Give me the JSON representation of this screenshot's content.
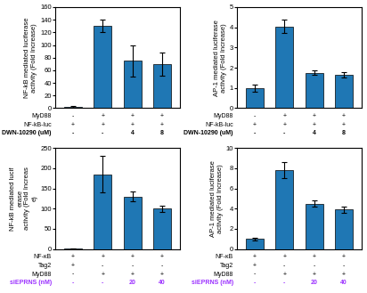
{
  "chart_data": [
    {
      "type": "bar",
      "ylabel": "NF-kB mediated luciferase\nactivity (Fold Increase)",
      "categories": [
        null,
        null,
        null,
        null
      ],
      "values": [
        2,
        130,
        75,
        70
      ],
      "errors": [
        1,
        10,
        25,
        18
      ],
      "ylim": [
        0,
        160
      ],
      "yticks": [
        0,
        20,
        40,
        60,
        80,
        100,
        120,
        140,
        160
      ],
      "tick_labels": "y",
      "table": [
        {
          "label": "MyD88",
          "cells": [
            "-",
            "+",
            "+",
            "+"
          ]
        },
        {
          "label": "NF-kB-luc",
          "cells": [
            "+",
            "+",
            "+",
            "+"
          ]
        },
        {
          "label": "DWN-10290 (uM)",
          "cells": [
            "-",
            "-",
            "4",
            "8"
          ]
        }
      ]
    },
    {
      "type": "bar",
      "ylabel": "AP-1 mediated luciferase\nactivity (Fold Increase)",
      "categories": [
        null,
        null,
        null,
        null
      ],
      "values": [
        1.0,
        4.05,
        1.75,
        1.65
      ],
      "errors": [
        0.18,
        0.35,
        0.1,
        0.12
      ],
      "ylim": [
        0,
        5
      ],
      "yticks": [
        0,
        1,
        2,
        3,
        4,
        5
      ],
      "tick_labels": "y",
      "table": [
        {
          "label": "MyD88",
          "cells": [
            "-",
            "+",
            "+",
            "+"
          ]
        },
        {
          "label": "NF-kB-luc",
          "cells": [
            "+",
            "+",
            "+",
            "+"
          ]
        },
        {
          "label": "DWN-10290 (uM)",
          "cells": [
            "-",
            "-",
            "4",
            "8"
          ]
        }
      ]
    },
    {
      "type": "bar",
      "ylabel": "NF-kB mediated lucif\nerase\nactivity (Fold Increas\ne)",
      "categories": [
        null,
        null,
        null,
        null
      ],
      "values": [
        1,
        185,
        130,
        100
      ],
      "errors": [
        0.5,
        45,
        12,
        8
      ],
      "ylim": [
        0,
        250
      ],
      "yticks": [
        0,
        50,
        100,
        150,
        200,
        250
      ],
      "tick_labels": "y",
      "table": [
        {
          "label": "NF-κB",
          "cells": [
            "+",
            "+",
            "+",
            "+"
          ]
        },
        {
          "label": "Tag2",
          "cells": [
            "+",
            "-",
            "-",
            "-"
          ]
        },
        {
          "label": "MyD88",
          "cells": [
            "-",
            "+",
            "+",
            "+"
          ]
        },
        {
          "label": "siEPRNS (nM)",
          "cells": [
            "-",
            "-",
            "20",
            "40"
          ],
          "color": "#9b30ff"
        }
      ]
    },
    {
      "type": "bar",
      "ylabel": "AP-1 mediated luciferase\nactivity (Fold Increase)",
      "categories": [
        null,
        null,
        null,
        null
      ],
      "values": [
        1.0,
        7.8,
        4.5,
        3.9
      ],
      "errors": [
        0.15,
        0.8,
        0.35,
        0.3
      ],
      "ylim": [
        0,
        10
      ],
      "yticks": [
        0,
        2,
        4,
        6,
        8,
        10
      ],
      "tick_labels": "y",
      "table": [
        {
          "label": "NF-κB",
          "cells": [
            "+",
            "+",
            "+",
            "+"
          ]
        },
        {
          "label": "Tag2",
          "cells": [
            "+",
            "-",
            "-",
            "-"
          ]
        },
        {
          "label": "MyD88",
          "cells": [
            "-",
            "+",
            "+",
            "+"
          ]
        },
        {
          "label": "siEPRNS (nM)",
          "cells": [
            "-",
            "-",
            "20",
            "40"
          ],
          "color": "#9b30ff"
        }
      ]
    }
  ]
}
